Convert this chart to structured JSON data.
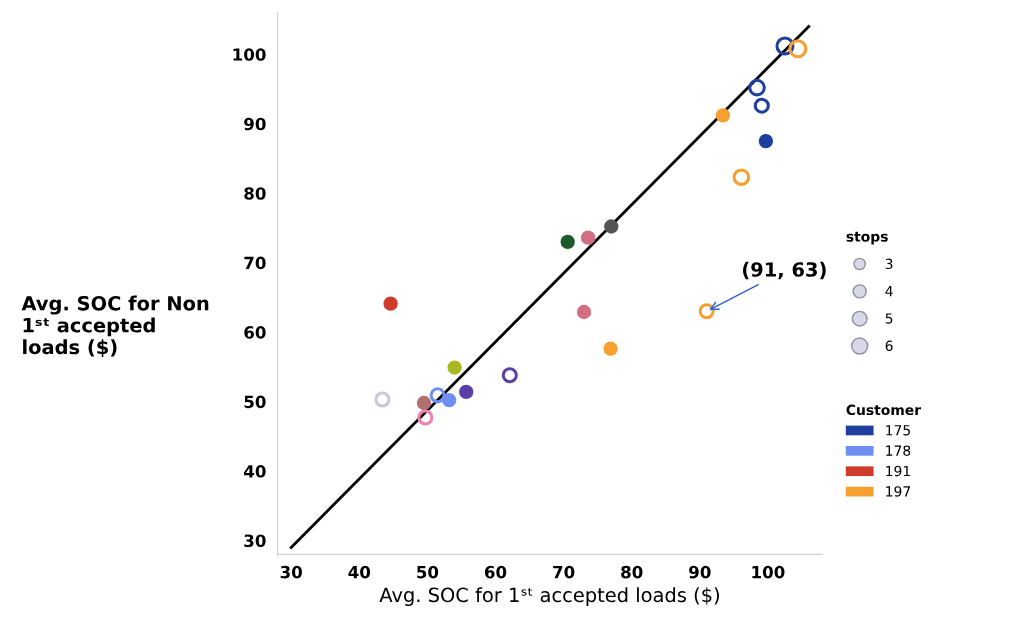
{
  "chart_data": {
    "type": "bubble",
    "xlabel": "Avg. SOC for 1ˢᵗ accepted loads ($)",
    "ylabel": "Avg. SOC for Non\n1ˢᵗ accepted\nloads ($)",
    "legend_title": [
      "stops",
      "Customer"
    ],
    "size_legend": [
      3,
      4,
      5,
      6
    ],
    "xlim": [
      28,
      108
    ],
    "ylim": [
      28,
      106
    ],
    "xticks": [
      30,
      40,
      50,
      60,
      70,
      80,
      90,
      100
    ],
    "yticks": [
      30,
      40,
      50,
      60,
      70,
      80,
      90,
      100
    ],
    "grid": false,
    "legend": "right",
    "marker": "circle",
    "annotations": [
      {
        "text": "(91, 63)",
        "x": 91,
        "y": 63
      }
    ],
    "series": [
      {
        "name": "175",
        "color": "#1f3f9e",
        "x": [
          102.5,
          98.4,
          99.1,
          99.7
        ],
        "values": [
          101.2,
          95.2,
          92.6,
          87.5
        ],
        "sizes": [
          6,
          5,
          4,
          3
        ]
      },
      {
        "name": "178",
        "color": "#6e8ff0",
        "x": [
          53.2,
          51.5
        ],
        "values": [
          50.2,
          50.9
        ],
        "sizes": [
          3,
          4
        ]
      },
      {
        "name": "191",
        "color": "#d03c2c",
        "x": [
          44.6
        ],
        "values": [
          64.1
        ],
        "sizes": [
          3
        ]
      },
      {
        "name": "197",
        "color": "#f5a030",
        "x": [
          104.4,
          96.1,
          93.4,
          91,
          76.9
        ],
        "values": [
          100.8,
          82.3,
          91.2,
          63,
          57.6
        ],
        "sizes": [
          6,
          5,
          3,
          4,
          3
        ]
      },
      {
        "color": "#1e5a2a",
        "x": [
          70.6
        ],
        "values": [
          73.0
        ],
        "sizes": [
          3
        ]
      },
      {
        "color": "#d07080",
        "x": [
          73.6,
          73.0
        ],
        "values": [
          73.6,
          62.9
        ],
        "sizes": [
          3,
          3
        ]
      },
      {
        "color": "#555555",
        "x": [
          77.0
        ],
        "values": [
          75.2
        ],
        "sizes": [
          3
        ]
      },
      {
        "color": "#a8b820",
        "x": [
          54.0
        ],
        "values": [
          54.9
        ],
        "sizes": [
          3
        ]
      },
      {
        "color": "#5a3fa8",
        "x": [
          62.1,
          55.7
        ],
        "values": [
          53.8,
          51.4
        ],
        "sizes": [
          4,
          3
        ]
      },
      {
        "color": "#b07070",
        "x": [
          49.5
        ],
        "values": [
          49.8
        ],
        "sizes": [
          3
        ]
      },
      {
        "color": "#f080b0",
        "x": [
          49.7
        ],
        "values": [
          47.7
        ],
        "sizes": [
          4
        ]
      },
      {
        "color": "#c8c8d8",
        "x": [
          43.4
        ],
        "values": [
          50.3
        ],
        "sizes": [
          4
        ]
      },
      {
        "type": "line",
        "marker": "none",
        "color": "#000000",
        "x": [
          30,
          106
        ],
        "values": [
          29,
          104
        ]
      }
    ]
  }
}
